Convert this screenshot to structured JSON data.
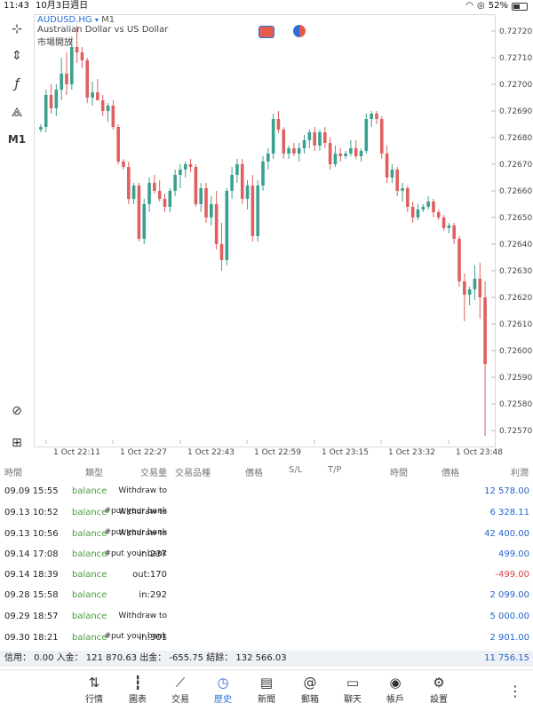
{
  "status_bar": {
    "time": "11:43",
    "date": "10月3日週日",
    "battery": "52%"
  },
  "chart_header": {
    "symbol": "AUDUSD.HG",
    "timeframe": "M1",
    "description": "Australian Dollar vs US Dollar",
    "market_status": "市場開放"
  },
  "tools": [
    {
      "name": "crosshair-icon",
      "glyph": "⊹"
    },
    {
      "name": "chart-type-icon",
      "glyph": "⇕"
    },
    {
      "name": "indicators-icon",
      "glyph": "ƒ"
    },
    {
      "name": "objects-icon",
      "glyph": "⟁"
    },
    {
      "name": "timeframe-label",
      "glyph": "M1"
    }
  ],
  "chart_data": {
    "type": "candlestick",
    "y_ticks": [
      "0.72720",
      "0.72710",
      "0.72700",
      "0.72690",
      "0.72680",
      "0.72670",
      "0.72660",
      "0.72650",
      "0.72640",
      "0.72630",
      "0.72620",
      "0.72610",
      "0.72600",
      "0.72590",
      "0.72580",
      "0.72570"
    ],
    "x_ticks": [
      "1 Oct 22:11",
      "1 Oct 22:27",
      "1 Oct 22:43",
      "1 Oct 22:59",
      "1 Oct 23:15",
      "1 Oct 23:32",
      "1 Oct 23:48"
    ],
    "ylim": [
      0.72565,
      0.72725
    ],
    "colors": {
      "up": "#3aa18f",
      "down": "#e06060"
    },
    "candles": [
      [
        0.72683,
        0.72685,
        0.72682,
        0.72684
      ],
      [
        0.72684,
        0.72698,
        0.72682,
        0.72696
      ],
      [
        0.72696,
        0.727,
        0.72689,
        0.72691
      ],
      [
        0.72691,
        0.727,
        0.72688,
        0.72698
      ],
      [
        0.72698,
        0.7271,
        0.72694,
        0.72704
      ],
      [
        0.72704,
        0.72712,
        0.72696,
        0.727
      ],
      [
        0.727,
        0.72718,
        0.72698,
        0.72714
      ],
      [
        0.72714,
        0.72722,
        0.72708,
        0.72712
      ],
      [
        0.72712,
        0.72714,
        0.72706,
        0.72709
      ],
      [
        0.72709,
        0.7271,
        0.72693,
        0.72695
      ],
      [
        0.72695,
        0.72701,
        0.72692,
        0.72697
      ],
      [
        0.72697,
        0.72702,
        0.72694,
        0.72694
      ],
      [
        0.72694,
        0.72696,
        0.72688,
        0.7269
      ],
      [
        0.7269,
        0.72693,
        0.72686,
        0.72692
      ],
      [
        0.72692,
        0.72694,
        0.72683,
        0.72684
      ],
      [
        0.72684,
        0.72685,
        0.7267,
        0.72671
      ],
      [
        0.72671,
        0.72672,
        0.72668,
        0.72669
      ],
      [
        0.72669,
        0.72671,
        0.72655,
        0.72657
      ],
      [
        0.72657,
        0.72663,
        0.72655,
        0.72662
      ],
      [
        0.72662,
        0.72663,
        0.72641,
        0.72642
      ],
      [
        0.72642,
        0.72657,
        0.7264,
        0.72655
      ],
      [
        0.72655,
        0.72665,
        0.72652,
        0.72663
      ],
      [
        0.72663,
        0.72666,
        0.72659,
        0.7266
      ],
      [
        0.7266,
        0.72664,
        0.72656,
        0.72657
      ],
      [
        0.72657,
        0.72659,
        0.72652,
        0.72654
      ],
      [
        0.72654,
        0.72661,
        0.72652,
        0.7266
      ],
      [
        0.7266,
        0.72668,
        0.72658,
        0.72666
      ],
      [
        0.72666,
        0.7267,
        0.72661,
        0.72668
      ],
      [
        0.72668,
        0.72671,
        0.72665,
        0.7267
      ],
      [
        0.7267,
        0.72672,
        0.72667,
        0.72669
      ],
      [
        0.72669,
        0.7267,
        0.72654,
        0.72655
      ],
      [
        0.72655,
        0.72663,
        0.72652,
        0.72661
      ],
      [
        0.72661,
        0.72663,
        0.72648,
        0.7265
      ],
      [
        0.7265,
        0.72658,
        0.72647,
        0.72655
      ],
      [
        0.72655,
        0.7266,
        0.72638,
        0.7264
      ],
      [
        0.7264,
        0.72648,
        0.7263,
        0.72634
      ],
      [
        0.72634,
        0.72661,
        0.72632,
        0.7266
      ],
      [
        0.7266,
        0.72669,
        0.72657,
        0.72666
      ],
      [
        0.72666,
        0.72672,
        0.72663,
        0.7267
      ],
      [
        0.7267,
        0.72672,
        0.72655,
        0.72657
      ],
      [
        0.72657,
        0.72664,
        0.72653,
        0.72662
      ],
      [
        0.72662,
        0.72666,
        0.72641,
        0.72643
      ],
      [
        0.72643,
        0.72664,
        0.72641,
        0.72662
      ],
      [
        0.72662,
        0.72673,
        0.7266,
        0.72671
      ],
      [
        0.72671,
        0.72676,
        0.72668,
        0.72674
      ],
      [
        0.72674,
        0.72689,
        0.72672,
        0.72687
      ],
      [
        0.72687,
        0.7269,
        0.72682,
        0.72683
      ],
      [
        0.72683,
        0.72684,
        0.72672,
        0.72674
      ],
      [
        0.72674,
        0.72677,
        0.72672,
        0.72676
      ],
      [
        0.72676,
        0.72678,
        0.72673,
        0.72674
      ],
      [
        0.72674,
        0.72678,
        0.72671,
        0.72676
      ],
      [
        0.72676,
        0.72681,
        0.72674,
        0.72679
      ],
      [
        0.72679,
        0.72683,
        0.72676,
        0.72682
      ],
      [
        0.72682,
        0.72684,
        0.72675,
        0.72677
      ],
      [
        0.72677,
        0.72683,
        0.72675,
        0.72682
      ],
      [
        0.72682,
        0.72684,
        0.72676,
        0.72678
      ],
      [
        0.72678,
        0.7268,
        0.72668,
        0.7267
      ],
      [
        0.7267,
        0.72677,
        0.72669,
        0.72674
      ],
      [
        0.72674,
        0.72676,
        0.72671,
        0.72673
      ],
      [
        0.72673,
        0.72675,
        0.72672,
        0.72674
      ],
      [
        0.72674,
        0.72679,
        0.72673,
        0.72676
      ],
      [
        0.72676,
        0.72679,
        0.72672,
        0.72673
      ],
      [
        0.72673,
        0.72676,
        0.72671,
        0.72675
      ],
      [
        0.72675,
        0.72689,
        0.72674,
        0.72687
      ],
      [
        0.72687,
        0.7269,
        0.72684,
        0.72689
      ],
      [
        0.72689,
        0.7269,
        0.72685,
        0.72687
      ],
      [
        0.72687,
        0.72688,
        0.72672,
        0.72674
      ],
      [
        0.72674,
        0.72677,
        0.72663,
        0.72665
      ],
      [
        0.72665,
        0.7267,
        0.72663,
        0.72668
      ],
      [
        0.72668,
        0.72669,
        0.72658,
        0.7266
      ],
      [
        0.7266,
        0.72663,
        0.72656,
        0.72661
      ],
      [
        0.72661,
        0.72662,
        0.72652,
        0.72654
      ],
      [
        0.72654,
        0.72656,
        0.72648,
        0.7265
      ],
      [
        0.7265,
        0.72655,
        0.72649,
        0.72653
      ],
      [
        0.72653,
        0.72655,
        0.72652,
        0.72654
      ],
      [
        0.72654,
        0.72658,
        0.72653,
        0.72656
      ],
      [
        0.72656,
        0.72657,
        0.7265,
        0.72652
      ],
      [
        0.72652,
        0.72653,
        0.72649,
        0.7265
      ],
      [
        0.7265,
        0.72651,
        0.72645,
        0.72646
      ],
      [
        0.72646,
        0.72648,
        0.72644,
        0.72647
      ],
      [
        0.72647,
        0.72648,
        0.7264,
        0.72642
      ],
      [
        0.72642,
        0.72643,
        0.72624,
        0.72626
      ],
      [
        0.72626,
        0.72629,
        0.72611,
        0.72621
      ],
      [
        0.72621,
        0.72624,
        0.72617,
        0.72623
      ],
      [
        0.72623,
        0.72632,
        0.72619,
        0.72627
      ],
      [
        0.72627,
        0.72633,
        0.72612,
        0.7262
      ],
      [
        0.7262,
        0.72626,
        0.72568,
        0.72595
      ]
    ]
  },
  "history": {
    "headers": {
      "time": "時間",
      "type": "類型",
      "volume": "交易量",
      "symbol": "交易品種",
      "price": "價格",
      "sl": "S/L",
      "tp": "T/P",
      "close_time": "時間",
      "close_price": "價格",
      "profit": "利潤"
    },
    "rows": [
      {
        "time": "09.09 15:55",
        "type": "balance",
        "comment_line1": "Withdraw to",
        "comment_line2": "#put your bank",
        "profit": "12 578.00",
        "neg": false
      },
      {
        "time": "09.13 10:52",
        "type": "balance",
        "comment_line1": "Withdraw to",
        "comment_line2": "#put your bank",
        "profit": "6 328.11",
        "neg": false
      },
      {
        "time": "09.13 10:56",
        "type": "balance",
        "comment_line1": "Withdraw to",
        "comment_line2": "#put your bank",
        "profit": "42 400.00",
        "neg": false
      },
      {
        "time": "09.14 17:08",
        "type": "balance",
        "comment_line1": "in:237",
        "comment_line2": "",
        "profit": "499.00",
        "neg": false
      },
      {
        "time": "09.14 18:39",
        "type": "balance",
        "comment_line1": "out:170",
        "comment_line2": "",
        "profit": "-499.00",
        "neg": true
      },
      {
        "time": "09.28 15:58",
        "type": "balance",
        "comment_line1": "in:292",
        "comment_line2": "",
        "profit": "2 099.00",
        "neg": false
      },
      {
        "time": "09.29 18:57",
        "type": "balance",
        "comment_line1": "Withdraw to",
        "comment_line2": "#put your bank",
        "profit": "5 000.00",
        "neg": false
      },
      {
        "time": "09.30 18:21",
        "type": "balance",
        "comment_line1": "in:301",
        "comment_line2": "",
        "profit": "2 901.00",
        "neg": false
      }
    ],
    "summary_text": "信用： 0.00 入金： 121 870.63 出金： -655.75 結餘： 132 566.03",
    "summary_value": "11 756.15"
  },
  "bottom_nav": [
    {
      "name": "nav-quotes",
      "label": "行情",
      "glyph": "⇅",
      "active": false
    },
    {
      "name": "nav-chart",
      "label": "圖表",
      "glyph": "┇",
      "active": false
    },
    {
      "name": "nav-trade",
      "label": "交易",
      "glyph": "⟋",
      "active": false
    },
    {
      "name": "nav-history",
      "label": "歷史",
      "glyph": "◷",
      "active": true
    },
    {
      "name": "nav-news",
      "label": "新聞",
      "glyph": "▤",
      "active": false
    },
    {
      "name": "nav-mail",
      "label": "郵箱",
      "glyph": "@",
      "active": false
    },
    {
      "name": "nav-chat",
      "label": "聊天",
      "glyph": "▭",
      "active": false
    },
    {
      "name": "nav-accounts",
      "label": "帳戶",
      "glyph": "◉",
      "active": false
    },
    {
      "name": "nav-settings",
      "label": "設置",
      "glyph": "⚙",
      "active": false
    }
  ],
  "more_glyph": "⋮"
}
